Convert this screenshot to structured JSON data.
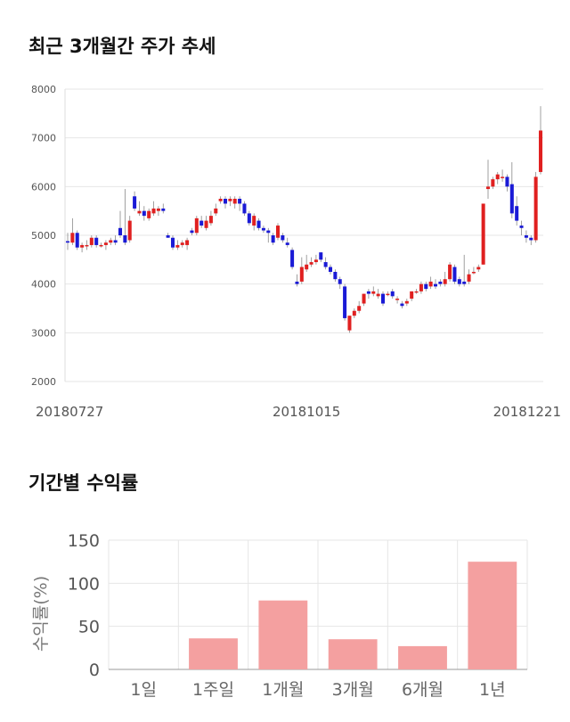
{
  "section_titles": {
    "price_trend": "최근 3개월간 주가 추세",
    "period_returns": "기간별 수익률"
  },
  "colors": {
    "up": "#e02020",
    "down": "#1a1ad6",
    "return_bar": "#f4a0a0",
    "grid": "#e6e6e6"
  },
  "chart_data": [
    {
      "type": "candlestick",
      "title": "최근 3개월간 주가 추세",
      "ylim": [
        2000,
        8000
      ],
      "yticks": [
        "8000",
        "7000",
        "6000",
        "5000",
        "4000",
        "3000",
        "2000"
      ],
      "xticks": [
        {
          "index": 0,
          "label": "20180727"
        },
        {
          "index": 50,
          "label": "20181015"
        },
        {
          "index": 97,
          "label": "20181221"
        }
      ],
      "grid": true,
      "candles": [
        [
          4880,
          4850,
          5050,
          4700
        ],
        [
          4850,
          5050,
          5350,
          4800
        ],
        [
          5050,
          4750,
          5100,
          4700
        ],
        [
          4750,
          4800,
          4850,
          4650
        ],
        [
          4800,
          4800,
          4900,
          4700
        ],
        [
          4800,
          4950,
          5000,
          4750
        ],
        [
          4950,
          4800,
          5000,
          4750
        ],
        [
          4800,
          4800,
          4850,
          4750
        ],
        [
          4800,
          4850,
          4900,
          4700
        ],
        [
          4850,
          4900,
          4950,
          4800
        ],
        [
          4900,
          4850,
          5000,
          4800
        ],
        [
          5150,
          5000,
          5500,
          4950
        ],
        [
          5000,
          4850,
          5950,
          4800
        ],
        [
          4900,
          5300,
          5400,
          4850
        ],
        [
          5800,
          5550,
          5900,
          5500
        ],
        [
          5450,
          5500,
          5700,
          5400
        ],
        [
          5500,
          5400,
          5600,
          5300
        ],
        [
          5350,
          5500,
          5550,
          5300
        ],
        [
          5450,
          5550,
          5700,
          5400
        ],
        [
          5500,
          5550,
          5600,
          5400
        ],
        [
          5550,
          5500,
          5650,
          5450
        ],
        [
          5000,
          4950,
          5050,
          4950
        ],
        [
          4950,
          4750,
          5000,
          4700
        ],
        [
          4750,
          4800,
          4900,
          4700
        ],
        [
          4800,
          4850,
          4900,
          4750
        ],
        [
          4800,
          4900,
          4950,
          4700
        ],
        [
          5100,
          5050,
          5150,
          5000
        ],
        [
          5050,
          5350,
          5400,
          5000
        ],
        [
          5300,
          5200,
          5400,
          5150
        ],
        [
          5150,
          5300,
          5400,
          5100
        ],
        [
          5250,
          5400,
          5500,
          5200
        ],
        [
          5450,
          5550,
          5650,
          5400
        ],
        [
          5700,
          5750,
          5800,
          5650
        ],
        [
          5750,
          5650,
          5800,
          5550
        ],
        [
          5700,
          5750,
          5800,
          5600
        ],
        [
          5650,
          5750,
          5800,
          5550
        ],
        [
          5750,
          5650,
          5800,
          5500
        ],
        [
          5650,
          5450,
          5700,
          5400
        ],
        [
          5450,
          5250,
          5500,
          5200
        ],
        [
          5200,
          5400,
          5450,
          5100
        ],
        [
          5300,
          5150,
          5350,
          5100
        ],
        [
          5150,
          5100,
          5200,
          5050
        ],
        [
          5100,
          5050,
          5150,
          4850
        ],
        [
          5000,
          4850,
          5050,
          4800
        ],
        [
          4950,
          5200,
          5250,
          4900
        ],
        [
          5000,
          4900,
          5050,
          4850
        ],
        [
          4850,
          4800,
          4950,
          4750
        ],
        [
          4700,
          4350,
          4750,
          4300
        ],
        [
          4050,
          4000,
          4200,
          3950
        ],
        [
          4050,
          4350,
          4550,
          4000
        ],
        [
          4300,
          4400,
          4600,
          4250
        ],
        [
          4400,
          4450,
          4550,
          4350
        ],
        [
          4450,
          4500,
          4600,
          4400
        ],
        [
          4650,
          4500,
          4650,
          4450
        ],
        [
          4450,
          4350,
          4550,
          4300
        ],
        [
          4350,
          4250,
          4400,
          4200
        ],
        [
          4250,
          4100,
          4300,
          4050
        ],
        [
          4100,
          4000,
          4150,
          3900
        ],
        [
          3950,
          3300,
          4000,
          3250
        ],
        [
          3050,
          3350,
          3350,
          3000
        ],
        [
          3350,
          3450,
          3500,
          3300
        ],
        [
          3450,
          3550,
          3650,
          3400
        ],
        [
          3600,
          3800,
          3800,
          3550
        ],
        [
          3850,
          3800,
          3900,
          3700
        ],
        [
          3800,
          3850,
          3950,
          3750
        ],
        [
          3750,
          3800,
          3900,
          3700
        ],
        [
          3800,
          3600,
          3850,
          3550
        ],
        [
          3800,
          3800,
          3850,
          3750
        ],
        [
          3850,
          3750,
          3900,
          3700
        ],
        [
          3700,
          3700,
          3750,
          3600
        ],
        [
          3600,
          3550,
          3650,
          3500
        ],
        [
          3600,
          3650,
          3700,
          3550
        ],
        [
          3700,
          3850,
          3850,
          3650
        ],
        [
          3850,
          3850,
          3900,
          3800
        ],
        [
          3850,
          4000,
          4050,
          3800
        ],
        [
          4000,
          3900,
          4050,
          3850
        ],
        [
          3950,
          4050,
          4150,
          3900
        ],
        [
          4000,
          3950,
          4100,
          3900
        ],
        [
          4050,
          4000,
          4100,
          3950
        ],
        [
          4000,
          4100,
          4250,
          3950
        ],
        [
          4100,
          4400,
          4450,
          4050
        ],
        [
          4350,
          4050,
          4400,
          4000
        ],
        [
          4100,
          4000,
          4150,
          3950
        ],
        [
          4050,
          4000,
          4600,
          3950
        ],
        [
          4050,
          4200,
          4300,
          4000
        ],
        [
          4250,
          4250,
          4350,
          4200
        ],
        [
          4300,
          4350,
          4400,
          4250
        ],
        [
          4400,
          5650,
          5650,
          4400
        ],
        [
          5950,
          6000,
          6550,
          5750
        ],
        [
          6000,
          6150,
          6200,
          5950
        ],
        [
          6150,
          6250,
          6300,
          6050
        ],
        [
          6200,
          6200,
          6350,
          6100
        ],
        [
          6200,
          6000,
          6250,
          5900
        ],
        [
          6050,
          5450,
          6500,
          5350
        ],
        [
          5600,
          5300,
          5800,
          5200
        ],
        [
          5200,
          5150,
          5300,
          5000
        ],
        [
          5000,
          4950,
          5100,
          4850
        ],
        [
          4950,
          4900,
          5000,
          4800
        ],
        [
          4900,
          6200,
          6300,
          4850
        ],
        [
          6300,
          7150,
          7650,
          6250
        ]
      ]
    },
    {
      "type": "bar",
      "title": "기간별 수익률",
      "categories": [
        "1일",
        "1주일",
        "1개월",
        "3개월",
        "6개월",
        "1년"
      ],
      "values": [
        0,
        36,
        80,
        35,
        27,
        125
      ],
      "ylabel": "수익률(%)",
      "ylim": [
        0,
        150
      ],
      "yticks": [
        "150",
        "100",
        "50",
        "0"
      ],
      "grid": true
    }
  ]
}
